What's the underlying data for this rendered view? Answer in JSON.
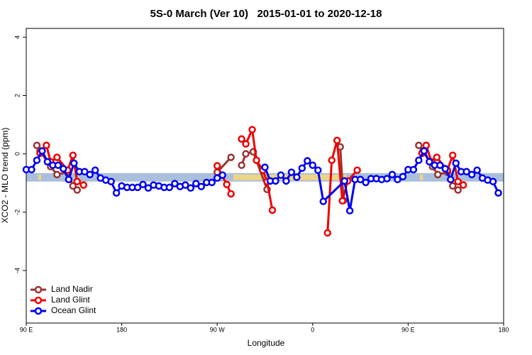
{
  "chart_data": {
    "type": "line",
    "title": "5S-0 March (Ver 10)   2015-01-01 to 2020-12-18",
    "x_label": "Longitude",
    "y_label": "XCO2 - MLO trend (ppm)",
    "xlim": [
      90,
      540
    ],
    "xticks": [
      {
        "value": 90,
        "label": "90 E"
      },
      180,
      {
        "value": 270,
        "label": "90 W"
      },
      {
        "value": 360,
        "label": "0"
      },
      {
        "value": 450,
        "label": "90 E"
      },
      {
        "value": 540,
        "label": "180"
      }
    ],
    "ylim": [
      -5.8,
      4.3
    ],
    "yticks": [
      4,
      2,
      0,
      -2,
      -4
    ],
    "band": [
      -0.95,
      -0.66
    ],
    "band_color": "#a9bfdc",
    "highlights": [
      [
        101,
        104
      ],
      [
        285,
        392
      ],
      [
        461,
        464
      ]
    ],
    "highlight_color": "#f5d77a",
    "legend": "bottom-left",
    "series": [
      {
        "name": "Land Nadir",
        "color": "#993333",
        "x": [
          100,
          103,
          113,
          119,
          129,
          134,
          138,
          200,
          270,
          283,
          288,
          293,
          297,
          304,
          317,
          350,
          386,
          389,
          420,
          460,
          464,
          473,
          478,
          487,
          492,
          497
        ],
        "values": [
          0.29,
          0.1,
          -0.44,
          -0.71,
          -0.63,
          -1.1,
          -1.24,
          null,
          -0.63,
          -0.12,
          null,
          -0.39,
          0,
          0.07,
          -1.22,
          null,
          0.24,
          -1.6,
          null,
          0.29,
          0.1,
          -0.44,
          -0.71,
          -0.63,
          -1.1,
          -1.24
        ]
      },
      {
        "name": "Land Glint",
        "color": "#ee0000",
        "x": [
          103,
          109,
          113,
          119,
          129,
          134,
          138,
          144,
          200,
          270,
          279,
          283,
          288,
          293,
          297,
          303,
          307,
          313,
          317,
          322,
          350,
          374,
          378,
          383,
          388,
          393,
          402,
          430,
          463,
          467,
          472,
          477,
          487,
          492,
          497,
          502
        ],
        "values": [
          0.02,
          0.29,
          -0.27,
          -0.12,
          -0.56,
          -0.05,
          -0.95,
          -1.07,
          null,
          -0.41,
          -1.05,
          -1.37,
          null,
          0.51,
          0.34,
          0.83,
          -0.22,
          -0.56,
          -0.95,
          -1.93,
          null,
          -2.71,
          -0.22,
          0.46,
          -1.61,
          -0.93,
          -0.56,
          null,
          0.02,
          0.29,
          -0.27,
          -0.12,
          -0.56,
          -0.05,
          -0.95,
          -1.07
        ]
      },
      {
        "name": "Ocean Glint",
        "color": "#0000ee",
        "x": [
          90,
          95,
          100,
          105,
          110,
          115,
          120,
          125,
          130,
          135,
          140,
          145,
          150,
          155,
          160,
          165,
          170,
          175,
          180,
          185,
          190,
          195,
          200,
          205,
          210,
          215,
          220,
          225,
          230,
          235,
          240,
          245,
          250,
          255,
          260,
          265,
          270,
          275,
          295,
          315,
          320,
          325,
          330,
          335,
          340,
          345,
          350,
          355,
          360,
          365,
          370,
          390,
          395,
          400,
          405,
          410,
          415,
          420,
          425,
          430,
          435,
          440,
          445,
          450,
          455,
          460,
          465,
          470,
          475,
          480,
          485,
          490,
          495,
          500,
          505,
          510,
          515,
          520,
          525,
          530,
          535
        ],
        "values": [
          -0.54,
          -0.54,
          -0.22,
          0.1,
          -0.27,
          -0.39,
          -0.39,
          -0.51,
          -0.88,
          -0.32,
          -0.61,
          -0.61,
          -0.71,
          -0.56,
          -0.83,
          -0.9,
          -0.95,
          -1.34,
          -1.1,
          -1.15,
          -1.15,
          -1.15,
          -1.05,
          -1.17,
          -1.07,
          -1.1,
          -1.15,
          -1.15,
          -1.02,
          -1.12,
          -1.07,
          -1.17,
          -1.02,
          -1.12,
          -0.98,
          -0.98,
          -0.83,
          -0.73,
          null,
          -0.46,
          -0.93,
          -0.93,
          -0.73,
          -0.93,
          -0.63,
          -0.8,
          -0.49,
          -0.24,
          -0.39,
          -0.56,
          -1.63,
          -0.93,
          -1.95,
          -0.88,
          -0.88,
          -0.98,
          -0.85,
          -0.85,
          -0.88,
          -0.85,
          -0.71,
          -0.88,
          -0.78,
          -0.54,
          -0.54,
          -0.22,
          0.1,
          -0.27,
          -0.39,
          -0.39,
          -0.51,
          -0.88,
          -0.32,
          -0.61,
          -0.61,
          -0.71,
          -0.56,
          -0.83,
          -0.9,
          -0.95,
          -1.34
        ]
      }
    ]
  }
}
